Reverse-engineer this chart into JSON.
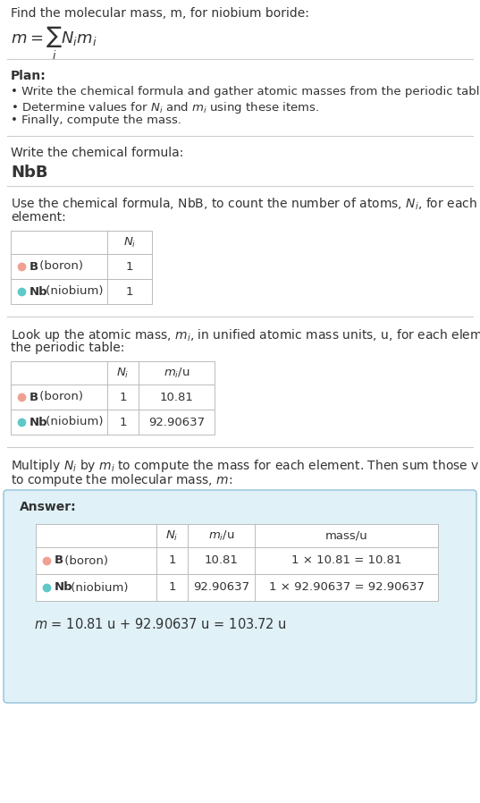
{
  "title_line1": "Find the molecular mass, m, for niobium boride:",
  "title_formula": "$m = \\sum_i N_i m_i$",
  "bg_color": "#ffffff",
  "plan_header": "Plan:",
  "plan_bullets": [
    "Write the chemical formula and gather atomic masses from the periodic table.",
    "Determine values for $N_i$ and $m_i$ using these items.",
    "Finally, compute the mass."
  ],
  "formula_label": "Write the chemical formula:",
  "formula_value": "NbB",
  "table1_intro": "Use the chemical formula, NbB, to count the number of atoms, $N_i$, for each\nelement:",
  "table2_intro": "Look up the atomic mass, $m_i$, in unified atomic mass units, u, for each element in\nthe periodic table:",
  "table3_intro": "Multiply $N_i$ by $m_i$ to compute the mass for each element. Then sum those values\nto compute the molecular mass, $m$:",
  "answer_label": "Answer:",
  "elements": [
    "B (boron)",
    "Nb (niobium)"
  ],
  "dot_colors": [
    "#f0a090",
    "#60c8c8"
  ],
  "Ni": [
    "1",
    "1"
  ],
  "mi": [
    "10.81",
    "92.90637"
  ],
  "mass_expr": [
    "1 × 10.81 = 10.81",
    "1 × 92.90637 = 92.90637"
  ],
  "final_eq": "$m$ = 10.81 u + 92.90637 u = 103.72 u",
  "sep_color": "#cccccc",
  "tbl_color": "#bbbbbb",
  "txt_color": "#333333",
  "ans_bg": "#e0f2f8",
  "ans_border": "#90c0d8"
}
